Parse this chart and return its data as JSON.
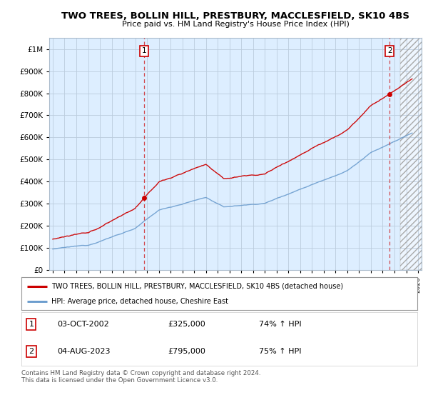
{
  "title": "TWO TREES, BOLLIN HILL, PRESTBURY, MACCLESFIELD, SK10 4BS",
  "subtitle": "Price paid vs. HM Land Registry's House Price Index (HPI)",
  "legend_line1": "TWO TREES, BOLLIN HILL, PRESTBURY, MACCLESFIELD, SK10 4BS (detached house)",
  "legend_line2": "HPI: Average price, detached house, Cheshire East",
  "marker1_date": "03-OCT-2002",
  "marker1_price": "£325,000",
  "marker1_hpi": "74% ↑ HPI",
  "marker2_date": "04-AUG-2023",
  "marker2_price": "£795,000",
  "marker2_hpi": "75% ↑ HPI",
  "footnote": "Contains HM Land Registry data © Crown copyright and database right 2024.\nThis data is licensed under the Open Government Licence v3.0.",
  "red_color": "#cc0000",
  "blue_color": "#6699cc",
  "plot_bg": "#ddeeff",
  "ylim_min": 0,
  "ylim_max": 1050000,
  "t_sale1": 2002.75,
  "t_sale2": 2023.583,
  "sale1_price": 325000,
  "sale2_price": 795000
}
